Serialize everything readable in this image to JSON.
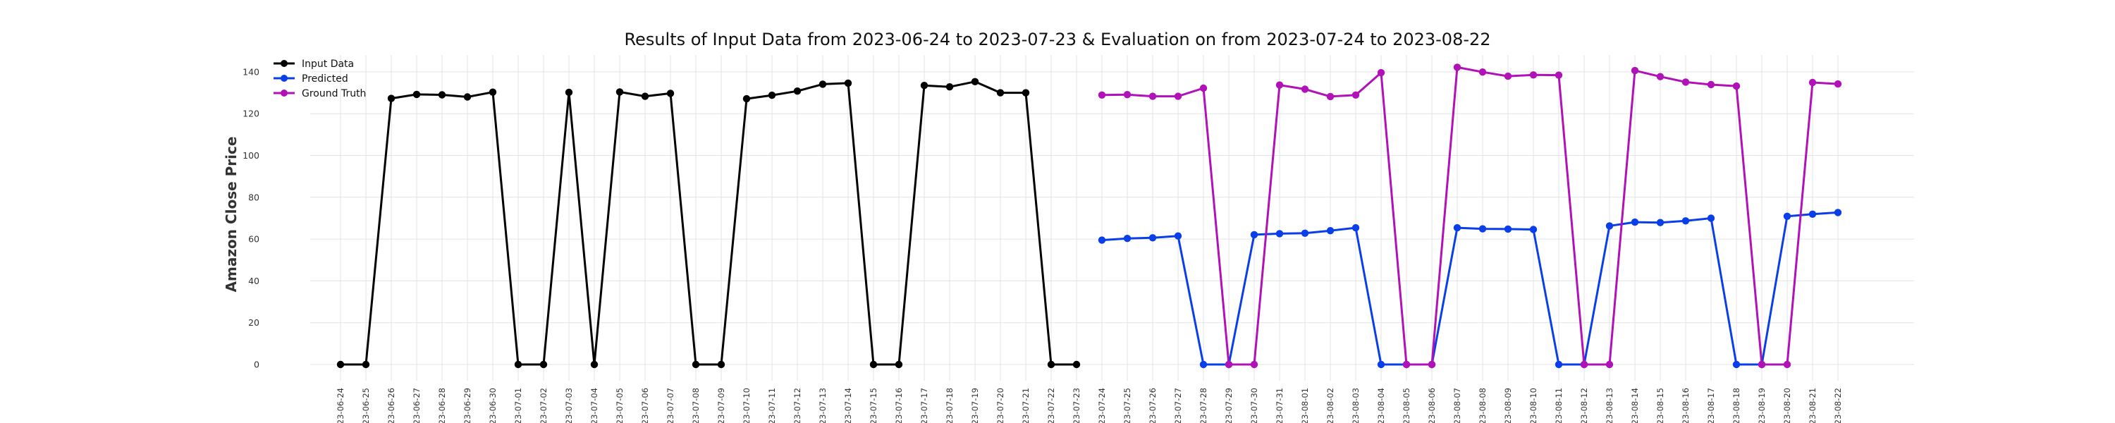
{
  "chart_data": {
    "type": "line",
    "title": "Results of Input Data from 2023-06-24 to 2023-07-23 & Evaluation on from 2023-07-24 to 2023-08-22",
    "xlabel": "",
    "ylabel": "Amazon Close Price",
    "ylim": [
      -10,
      150
    ],
    "yticks": [
      0,
      20,
      40,
      60,
      80,
      100,
      120,
      140
    ],
    "grid": true,
    "legend_position": "top-left",
    "x": [
      "2023-06-24",
      "2023-06-25",
      "2023-06-26",
      "2023-06-27",
      "2023-06-28",
      "2023-06-29",
      "2023-06-30",
      "2023-07-01",
      "2023-07-02",
      "2023-07-03",
      "2023-07-04",
      "2023-07-05",
      "2023-07-06",
      "2023-07-07",
      "2023-07-08",
      "2023-07-09",
      "2023-07-10",
      "2023-07-11",
      "2023-07-12",
      "2023-07-13",
      "2023-07-14",
      "2023-07-15",
      "2023-07-16",
      "2023-07-17",
      "2023-07-18",
      "2023-07-19",
      "2023-07-20",
      "2023-07-21",
      "2023-07-22",
      "2023-07-23",
      "2023-07-24",
      "2023-07-25",
      "2023-07-26",
      "2023-07-27",
      "2023-07-28",
      "2023-07-29",
      "2023-07-30",
      "2023-07-31",
      "2023-08-01",
      "2023-08-02",
      "2023-08-03",
      "2023-08-04",
      "2023-08-05",
      "2023-08-06",
      "2023-08-07",
      "2023-08-08",
      "2023-08-09",
      "2023-08-10",
      "2023-08-11",
      "2023-08-12",
      "2023-08-13",
      "2023-08-14",
      "2023-08-15",
      "2023-08-16",
      "2023-08-17",
      "2023-08-18",
      "2023-08-19",
      "2023-08-20",
      "2023-08-21",
      "2023-08-22"
    ],
    "x_tick_labels": [
      "-23-06-24",
      "-23-06-25",
      "-23-06-26",
      "-23-06-27",
      "-23-06-28",
      "-23-06-29",
      "-23-06-30",
      "-23-07-01",
      "-23-07-02",
      "-23-07-03",
      "-23-07-04",
      "-23-07-05",
      "-23-07-06",
      "-23-07-07",
      "-23-07-08",
      "-23-07-09",
      "-23-07-10",
      "-23-07-11",
      "-23-07-12",
      "-23-07-13",
      "-23-07-14",
      "-23-07-15",
      "-23-07-16",
      "-23-07-17",
      "-23-07-18",
      "-23-07-19",
      "-23-07-20",
      "-23-07-21",
      "-23-07-22",
      "-23-07-23",
      "-23-07-24",
      "-23-07-25",
      "-23-07-26",
      "-23-07-27",
      "-23-07-28",
      "-23-07-29",
      "-23-07-30",
      "-23-07-31",
      "-23-08-01",
      "-23-08-02",
      "-23-08-03",
      "-23-08-04",
      "-23-08-05",
      "-23-08-06",
      "-23-08-07",
      "-23-08-08",
      "-23-08-09",
      "-23-08-10",
      "-23-08-11",
      "-23-08-12",
      "-23-08-13",
      "-23-08-14",
      "-23-08-15",
      "-23-08-16",
      "-23-08-17",
      "-23-08-18",
      "-23-08-19",
      "-23-08-20",
      "-23-08-21",
      "-23-08-22"
    ],
    "series": [
      {
        "name": "Input Data",
        "color": "#000000",
        "x": [
          "2023-06-24",
          "2023-06-25",
          "2023-06-26",
          "2023-06-27",
          "2023-06-28",
          "2023-06-29",
          "2023-06-30",
          "2023-07-01",
          "2023-07-02",
          "2023-07-03",
          "2023-07-04",
          "2023-07-05",
          "2023-07-06",
          "2023-07-07",
          "2023-07-08",
          "2023-07-09",
          "2023-07-10",
          "2023-07-11",
          "2023-07-12",
          "2023-07-13",
          "2023-07-14",
          "2023-07-15",
          "2023-07-16",
          "2023-07-17",
          "2023-07-18",
          "2023-07-19",
          "2023-07-20",
          "2023-07-21",
          "2023-07-22",
          "2023-07-23"
        ],
        "values": [
          0,
          0,
          127.3,
          129.2,
          129.0,
          128.0,
          130.3,
          0,
          0,
          130.2,
          0,
          130.4,
          128.3,
          129.7,
          0,
          0,
          127.1,
          128.8,
          130.8,
          134.1,
          134.6,
          0,
          0,
          133.5,
          132.8,
          135.3,
          130.0,
          130.0,
          0,
          0
        ]
      },
      {
        "name": "Predicted",
        "color": "#0a3ee8",
        "x": [
          "2023-07-24",
          "2023-07-25",
          "2023-07-26",
          "2023-07-27",
          "2023-07-28",
          "2023-07-29",
          "2023-07-30",
          "2023-07-31",
          "2023-08-01",
          "2023-08-02",
          "2023-08-03",
          "2023-08-04",
          "2023-08-05",
          "2023-08-06",
          "2023-08-07",
          "2023-08-08",
          "2023-08-09",
          "2023-08-10",
          "2023-08-11",
          "2023-08-12",
          "2023-08-13",
          "2023-08-14",
          "2023-08-15",
          "2023-08-16",
          "2023-08-17",
          "2023-08-18",
          "2023-08-19",
          "2023-08-20",
          "2023-08-21",
          "2023-08-22"
        ],
        "values": [
          59.5,
          60.3,
          60.6,
          61.5,
          0,
          0,
          62.1,
          62.6,
          62.8,
          64.0,
          65.4,
          0,
          0,
          0,
          65.4,
          64.9,
          64.8,
          64.6,
          0,
          0,
          66.3,
          68.1,
          67.9,
          68.7,
          70.0,
          0,
          0,
          70.9,
          71.9,
          72.7
        ]
      },
      {
        "name": "Ground Truth",
        "color": "#b012b8",
        "x": [
          "2023-07-24",
          "2023-07-25",
          "2023-07-26",
          "2023-07-27",
          "2023-07-28",
          "2023-07-29",
          "2023-07-30",
          "2023-07-31",
          "2023-08-01",
          "2023-08-02",
          "2023-08-03",
          "2023-08-04",
          "2023-08-05",
          "2023-08-06",
          "2023-08-07",
          "2023-08-08",
          "2023-08-09",
          "2023-08-10",
          "2023-08-11",
          "2023-08-12",
          "2023-08-13",
          "2023-08-14",
          "2023-08-15",
          "2023-08-16",
          "2023-08-17",
          "2023-08-18",
          "2023-08-19",
          "2023-08-20",
          "2023-08-21",
          "2023-08-22"
        ],
        "values": [
          128.9,
          129.1,
          128.3,
          128.3,
          132.2,
          0,
          0,
          133.7,
          131.7,
          128.2,
          128.9,
          139.6,
          0,
          0,
          142.2,
          139.9,
          137.9,
          138.5,
          138.4,
          0,
          0,
          140.6,
          137.7,
          135.1,
          133.9,
          133.2,
          0,
          0,
          134.9,
          134.2
        ]
      }
    ]
  }
}
